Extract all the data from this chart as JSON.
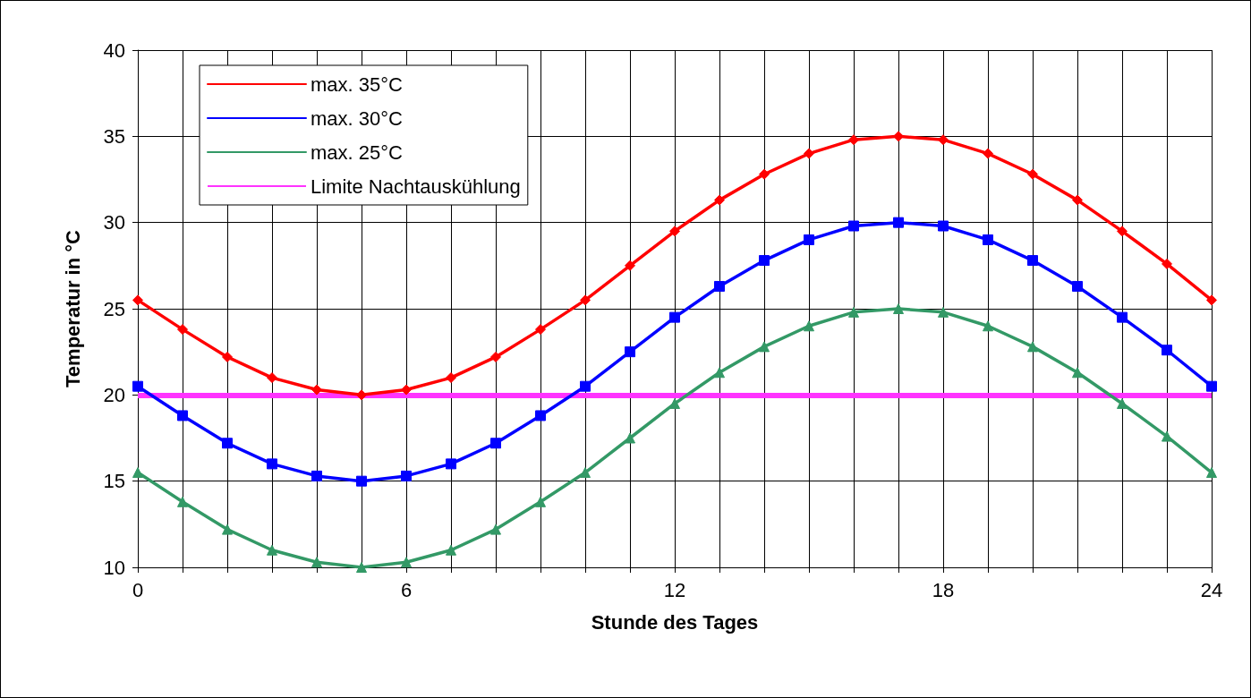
{
  "chart_data": {
    "type": "line",
    "xlabel": "Stunde des Tages",
    "ylabel": "Temperatur in °C",
    "x": [
      0,
      1,
      2,
      3,
      4,
      5,
      6,
      7,
      8,
      9,
      10,
      11,
      12,
      13,
      14,
      15,
      16,
      17,
      18,
      19,
      20,
      21,
      22,
      23,
      24
    ],
    "series": [
      {
        "name": "max. 35°C",
        "color": "#ff0000",
        "marker": "diamond",
        "values": [
          25.5,
          23.8,
          22.2,
          21.0,
          20.3,
          20.0,
          20.3,
          21.0,
          22.2,
          23.8,
          25.5,
          27.5,
          29.5,
          31.3,
          32.8,
          34.0,
          34.8,
          35.0,
          34.8,
          34.0,
          32.8,
          31.3,
          29.5,
          27.6,
          25.5
        ]
      },
      {
        "name": "max. 30°C",
        "color": "#0000ff",
        "marker": "square",
        "values": [
          20.5,
          18.8,
          17.2,
          16.0,
          15.3,
          15.0,
          15.3,
          16.0,
          17.2,
          18.8,
          20.5,
          22.5,
          24.5,
          26.3,
          27.8,
          29.0,
          29.8,
          30.0,
          29.8,
          29.0,
          27.8,
          26.3,
          24.5,
          22.6,
          20.5
        ]
      },
      {
        "name": "max. 25°C",
        "color": "#339966",
        "marker": "triangle",
        "values": [
          15.5,
          13.8,
          12.2,
          11.0,
          10.3,
          10.0,
          10.3,
          11.0,
          12.2,
          13.8,
          15.5,
          17.5,
          19.5,
          21.3,
          22.8,
          24.0,
          24.8,
          25.0,
          24.8,
          24.0,
          22.8,
          21.3,
          19.5,
          17.6,
          15.5
        ]
      }
    ],
    "ref_lines": [
      {
        "axis": "y",
        "value": 20,
        "label": "Limite Nachtauskühlung",
        "color": "#ff33ff",
        "line_style": "solid"
      }
    ],
    "xlim": [
      0,
      24
    ],
    "xticks": [
      0,
      {
        "value": 1,
        "label": null
      },
      {
        "value": 2,
        "label": null
      },
      {
        "value": 3,
        "label": null
      },
      {
        "value": 4,
        "label": null
      },
      {
        "value": 5,
        "label": null
      },
      6,
      {
        "value": 7,
        "label": null
      },
      {
        "value": 8,
        "label": null
      },
      {
        "value": 9,
        "label": null
      },
      {
        "value": 10,
        "label": null
      },
      {
        "value": 11,
        "label": null
      },
      12,
      {
        "value": 13,
        "label": null
      },
      {
        "value": 14,
        "label": null
      },
      {
        "value": 15,
        "label": null
      },
      {
        "value": 16,
        "label": null
      },
      {
        "value": 17,
        "label": null
      },
      18,
      {
        "value": 19,
        "label": null
      },
      {
        "value": 20,
        "label": null
      },
      {
        "value": 21,
        "label": null
      },
      {
        "value": 22,
        "label": null
      },
      {
        "value": 23,
        "label": null
      },
      24
    ],
    "ylim": [
      10,
      40
    ],
    "yticks": [
      10,
      15,
      20,
      25,
      30,
      35,
      40
    ],
    "grid": true,
    "legend": "top left",
    "line_style": "solid"
  }
}
